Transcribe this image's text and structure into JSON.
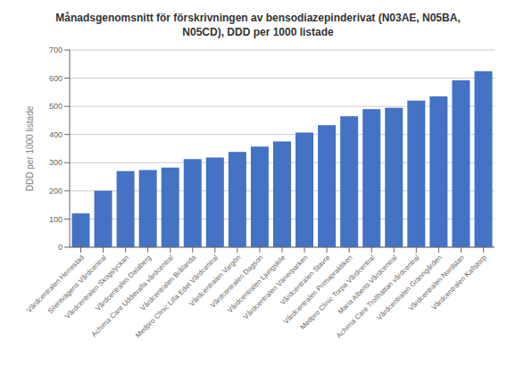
{
  "chart_data": {
    "type": "bar",
    "title": "Månadsgenomsnitt för förskrivningen av bensodiazepinderivat (N03AE, N05BA,\nN05CD), DDD per 1000 listade",
    "ylabel": "DDD per 1000 listade",
    "categories": [
      "Vårdcentralen Herrestad",
      "Silentvägens Vårdcentral",
      "Vårdcentralen Skogslyckan",
      "Vårdcentralen Dalaberg",
      "Achima Care Uddevalla vårdcentral",
      "Vårdcentralen Brålanda",
      "Medpro Clinic Lilla Edet Vårdcentral",
      "Vårdcentralen Vargön",
      "Vårdcentralen Dagson",
      "Vårdcentralen Ljungskile",
      "Vårdcentralen Vänerparken",
      "Vårdcentralen Stavre",
      "Vårdcentralen Primapraktiken",
      "Medpro Clinic Torpa Vårdcentral",
      "Maria Alberts Vårdcentral",
      "Achima Care Trollhättan vårdcentral",
      "Vårdcentralen Granngården",
      "Vårdcentralen Nordstan",
      "Vårdcentralen Kallstorp"
    ],
    "values": [
      120,
      200,
      270,
      274,
      283,
      313,
      318,
      338,
      357,
      375,
      407,
      433,
      465,
      490,
      495,
      520,
      535,
      592,
      625
    ],
    "color": "#4472C4",
    "ylim": [
      0,
      700
    ],
    "yticks": [
      0,
      100,
      200,
      300,
      400,
      500,
      600,
      700
    ],
    "grid": true
  }
}
